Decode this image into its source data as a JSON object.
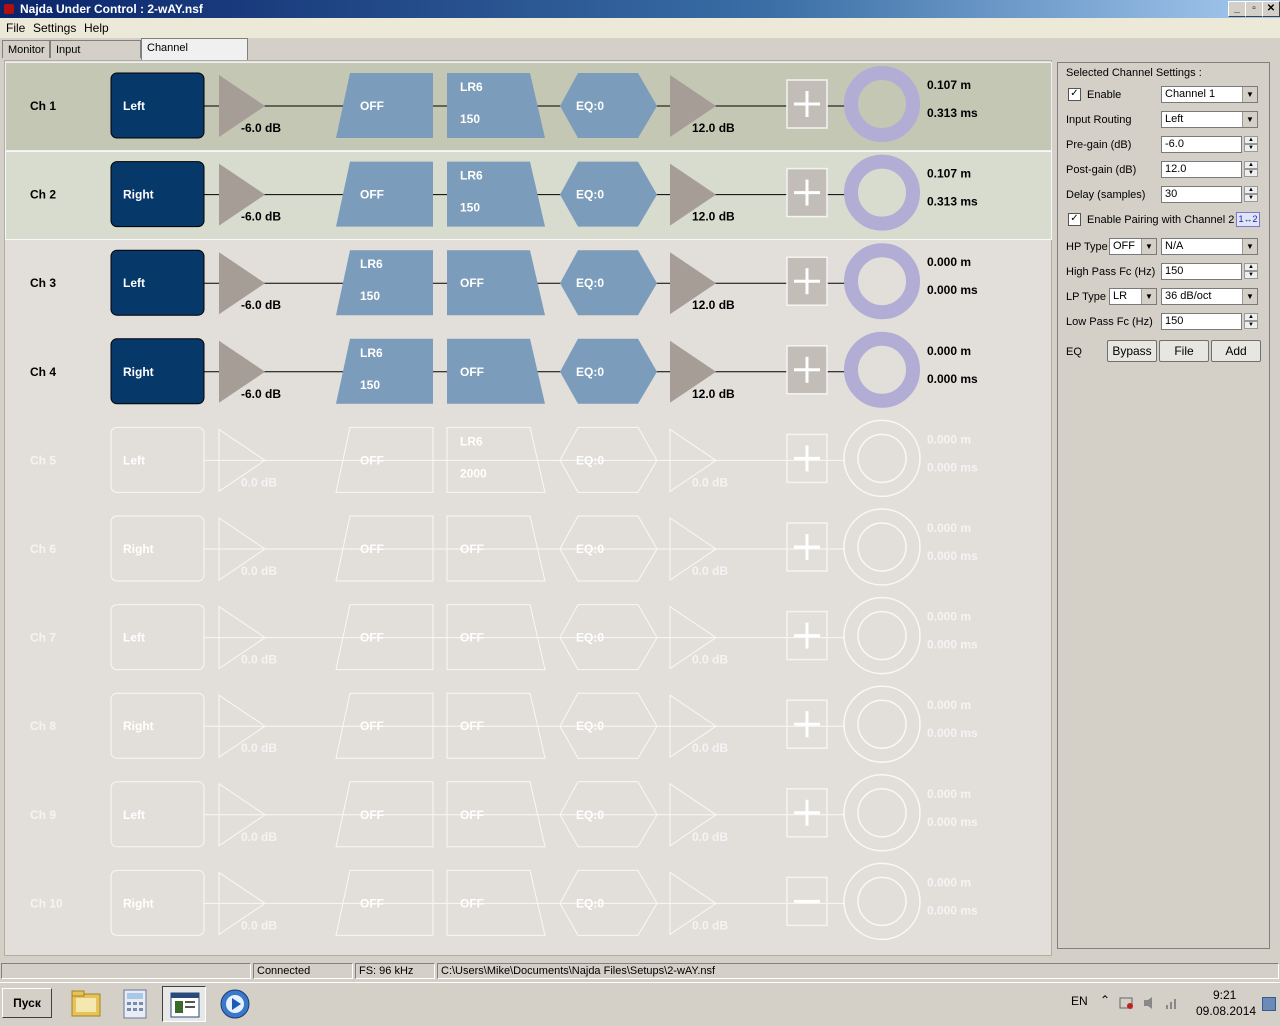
{
  "window": {
    "title": "Najda Under Control : 2-wAY.nsf",
    "min": "_",
    "max": "▫",
    "close": "✕"
  },
  "menu": [
    "File",
    "Settings",
    "Help"
  ],
  "tabs": [
    "Monitor",
    "Input Processing",
    "Channel Processing"
  ],
  "active_tab": "Channel Processing",
  "channels": [
    {
      "name": "Ch 1",
      "input": "Left",
      "pre_gain": "-6.0 dB",
      "hp": [
        "OFF"
      ],
      "lp": [
        "LR6",
        "150"
      ],
      "eq": "EQ:0",
      "post_gain": "12.0 dB",
      "button": "plus",
      "dist": "0.107 m",
      "time": "0.313 ms",
      "enabled": true,
      "highlight": 1
    },
    {
      "name": "Ch 2",
      "input": "Right",
      "pre_gain": "-6.0 dB",
      "hp": [
        "OFF"
      ],
      "lp": [
        "LR6",
        "150"
      ],
      "eq": "EQ:0",
      "post_gain": "12.0 dB",
      "button": "plus",
      "dist": "0.107 m",
      "time": "0.313 ms",
      "enabled": true,
      "highlight": 2
    },
    {
      "name": "Ch 3",
      "input": "Left",
      "pre_gain": "-6.0 dB",
      "hp": [
        "LR6",
        "150"
      ],
      "lp": [
        "OFF"
      ],
      "eq": "EQ:0",
      "post_gain": "12.0 dB",
      "button": "plus",
      "dist": "0.000 m",
      "time": "0.000 ms",
      "enabled": true,
      "highlight": 0
    },
    {
      "name": "Ch 4",
      "input": "Right",
      "pre_gain": "-6.0 dB",
      "hp": [
        "LR6",
        "150"
      ],
      "lp": [
        "OFF"
      ],
      "eq": "EQ:0",
      "post_gain": "12.0 dB",
      "button": "plus",
      "dist": "0.000 m",
      "time": "0.000 ms",
      "enabled": true,
      "highlight": 0
    },
    {
      "name": "Ch 5",
      "input": "Left",
      "pre_gain": "0.0 dB",
      "hp": [
        "OFF"
      ],
      "lp": [
        "LR6",
        "2000"
      ],
      "eq": "EQ:0",
      "post_gain": "0.0 dB",
      "button": "plus",
      "dist": "0.000 m",
      "time": "0.000 ms",
      "enabled": false,
      "highlight": 0
    },
    {
      "name": "Ch 6",
      "input": "Right",
      "pre_gain": "0.0 dB",
      "hp": [
        "OFF"
      ],
      "lp": [
        "OFF"
      ],
      "eq": "EQ:0",
      "post_gain": "0.0 dB",
      "button": "plus",
      "dist": "0.000 m",
      "time": "0.000 ms",
      "enabled": false,
      "highlight": 0
    },
    {
      "name": "Ch 7",
      "input": "Left",
      "pre_gain": "0.0 dB",
      "hp": [
        "OFF"
      ],
      "lp": [
        "OFF"
      ],
      "eq": "EQ:0",
      "post_gain": "0.0 dB",
      "button": "plus",
      "dist": "0.000 m",
      "time": "0.000 ms",
      "enabled": false,
      "highlight": 0
    },
    {
      "name": "Ch 8",
      "input": "Right",
      "pre_gain": "0.0 dB",
      "hp": [
        "OFF"
      ],
      "lp": [
        "OFF"
      ],
      "eq": "EQ:0",
      "post_gain": "0.0 dB",
      "button": "plus",
      "dist": "0.000 m",
      "time": "0.000 ms",
      "enabled": false,
      "highlight": 0
    },
    {
      "name": "Ch 9",
      "input": "Left",
      "pre_gain": "0.0 dB",
      "hp": [
        "OFF"
      ],
      "lp": [
        "OFF"
      ],
      "eq": "EQ:0",
      "post_gain": "0.0 dB",
      "button": "plus",
      "dist": "0.000 m",
      "time": "0.000 ms",
      "enabled": false,
      "highlight": 0
    },
    {
      "name": "Ch 10",
      "input": "Right",
      "pre_gain": "0.0 dB",
      "hp": [
        "OFF"
      ],
      "lp": [
        "OFF"
      ],
      "eq": "EQ:0",
      "post_gain": "0.0 dB",
      "button": "minus",
      "dist": "0.000 m",
      "time": "0.000 ms",
      "enabled": false,
      "highlight": 0
    }
  ],
  "colors": {
    "input_block": "#07386a",
    "filter_block": "#7b9cba",
    "gain_triangle": "#a59d96",
    "ring": "#b1add5",
    "disabled_line": "#f8f8f8",
    "highlight_1": "#c4c7b4",
    "highlight_2": "#d8dccf"
  },
  "panel": {
    "header": "Selected Channel Settings :",
    "enable_label": "Enable",
    "enable_checked": true,
    "channel_select": "Channel 1",
    "input_routing_label": "Input Routing",
    "input_routing": "Left",
    "pre_gain_label": "Pre-gain (dB)",
    "pre_gain": "-6.0",
    "post_gain_label": "Post-gain (dB)",
    "post_gain": "12.0",
    "delay_label": "Delay (samples)",
    "delay": "30",
    "pairing_label": "Enable Pairing with Channel 2",
    "pairing_checked": true,
    "pairing_button": "1↔2",
    "hp_type_label": "HP Type",
    "hp_type": "OFF",
    "hp_slope": "N/A",
    "hp_fc_label": "High Pass Fc (Hz)",
    "hp_fc": "150",
    "lp_type_label": "LP Type",
    "lp_type": "LR",
    "lp_slope": "36 dB/oct",
    "lp_fc_label": "Low Pass Fc (Hz)",
    "lp_fc": "150",
    "eq_label": "EQ",
    "bypass_button": "Bypass",
    "file_button": "File",
    "add_button": "Add"
  },
  "status": {
    "connection": "Connected",
    "fs": "FS: 96 kHz",
    "path": "C:\\Users\\Mike\\Documents\\Najda Files\\Setups\\2-wAY.nsf"
  },
  "taskbar": {
    "start": "Пуск",
    "lang": "EN",
    "time": "9:21",
    "date": "09.08.2014",
    "items": [
      "explorer-icon",
      "calculator-icon",
      "najda-icon",
      "media-player-icon"
    ]
  }
}
